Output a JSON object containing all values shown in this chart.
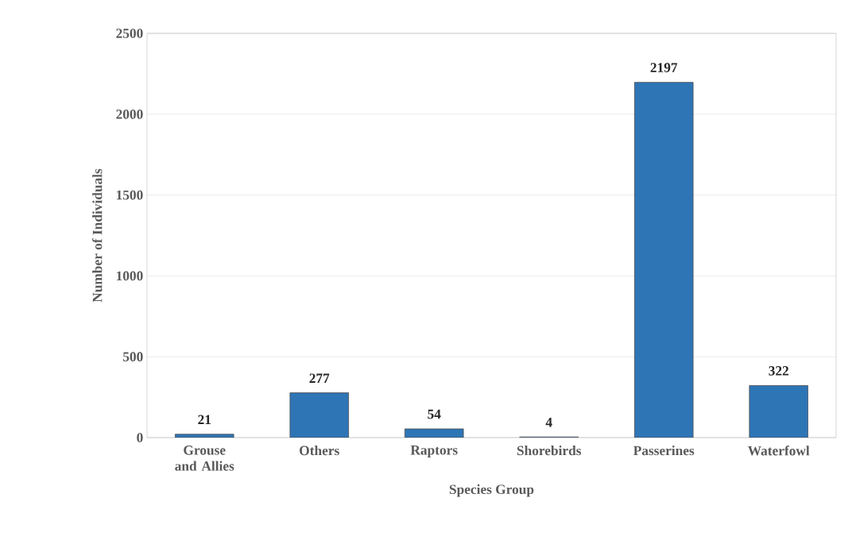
{
  "chart_data": {
    "type": "bar",
    "xlabel": "Species Group",
    "ylabel": "Number of Individuals",
    "categories": [
      "Grouse and Allies",
      "Others",
      "Raptors",
      "Shorebirds",
      "Passerines",
      "Waterfowl"
    ],
    "values": [
      21,
      277,
      54,
      4,
      2197,
      322
    ],
    "color": "#2e75b6",
    "ylim": [
      0,
      2500
    ],
    "yticks": [
      0,
      500,
      1000,
      1500,
      2000,
      2500
    ],
    "grid": "y",
    "data_labels": true
  }
}
